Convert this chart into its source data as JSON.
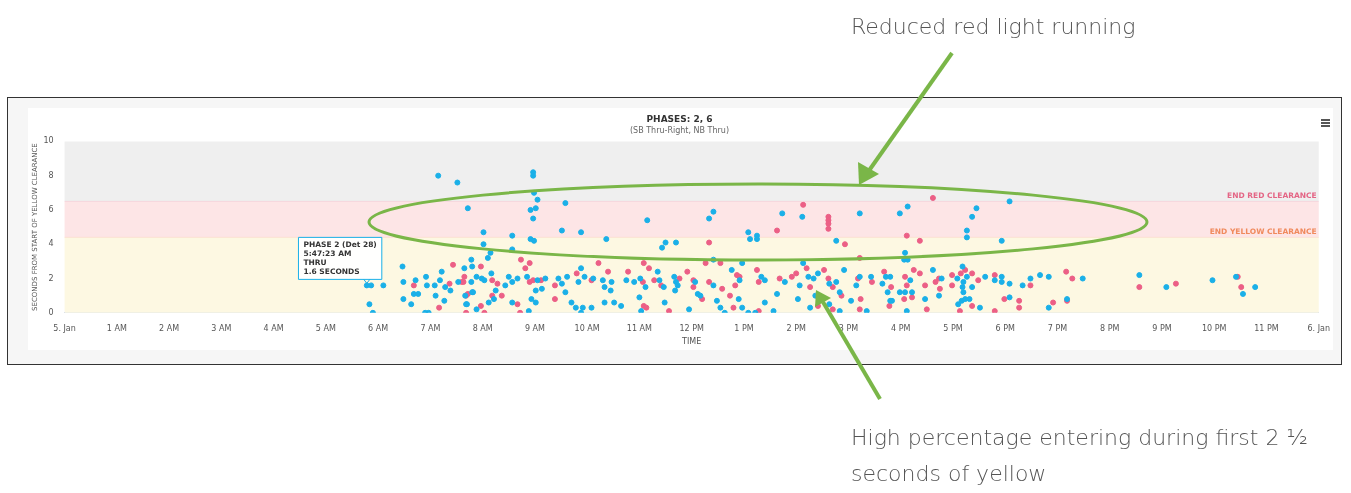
{
  "chart_data": {
    "type": "scatter",
    "title": "PHASES: 2, 6",
    "subtitle": "(SB Thru-Right, NB Thru)",
    "xlabel": "TIME",
    "ylabel": "SECONDS FROM START OF YELLOW CLEARANCE",
    "marker": "circle",
    "xlim": [
      "--01-05T00:00",
      "--01-06T00:00"
    ],
    "xticks": [
      {
        "value": "--01-05T00:00",
        "label": "5. Jan"
      },
      {
        "value": "--01-05T01:00",
        "label": "1 AM"
      },
      {
        "value": "--01-05T02:00",
        "label": "2 AM"
      },
      {
        "value": "--01-05T03:00",
        "label": "3 AM"
      },
      {
        "value": "--01-05T04:00",
        "label": "4 AM"
      },
      {
        "value": "--01-05T05:00",
        "label": "5 AM"
      },
      {
        "value": "--01-05T06:00",
        "label": "6 AM"
      },
      {
        "value": "--01-05T07:00",
        "label": "7 AM"
      },
      {
        "value": "--01-05T08:00",
        "label": "8 AM"
      },
      {
        "value": "--01-05T09:00",
        "label": "9 AM"
      },
      {
        "value": "--01-05T10:00",
        "label": "10 AM"
      },
      {
        "value": "--01-05T11:00",
        "label": "11 AM"
      },
      {
        "value": "--01-05T12:00",
        "label": "12 PM"
      },
      {
        "value": "--01-05T13:00",
        "label": "1 PM"
      },
      {
        "value": "--01-05T14:00",
        "label": "2 PM"
      },
      {
        "value": "--01-05T15:00",
        "label": "3 PM"
      },
      {
        "value": "--01-05T16:00",
        "label": "4 PM"
      },
      {
        "value": "--01-05T17:00",
        "label": "5 PM"
      },
      {
        "value": "--01-05T18:00",
        "label": "6 PM"
      },
      {
        "value": "--01-05T19:00",
        "label": "7 PM"
      },
      {
        "value": "--01-05T20:00",
        "label": "8 PM"
      },
      {
        "value": "--01-05T21:00",
        "label": "9 PM"
      },
      {
        "value": "--01-05T22:00",
        "label": "10 PM"
      },
      {
        "value": "--01-05T23:00",
        "label": "11 PM"
      },
      {
        "value": "--01-06T00:00",
        "label": "6. Jan"
      }
    ],
    "ylim": [
      0,
      10
    ],
    "yticks": [
      0,
      2,
      4,
      6,
      8,
      10
    ],
    "bands": [
      {
        "axis": "y",
        "from": 6.5,
        "to": 10,
        "color": "#efefef"
      },
      {
        "axis": "y",
        "from": 4.4,
        "to": 6.5,
        "color": "#fde5e6"
      },
      {
        "axis": "y",
        "from": 0,
        "to": 4.4,
        "color": "#fdf8e2"
      }
    ],
    "ref_lines": [
      {
        "axis": "y",
        "value": 6.5,
        "label": "END RED CLEARANCE",
        "color": "#e46585"
      },
      {
        "axis": "y",
        "value": 4.4,
        "label": "END YELLOW CLEARANCE",
        "color": "#f08a5d"
      }
    ],
    "series": [
      {
        "color": "#1ab0e8",
        "x": [
          "--01-05T07:09",
          "--01-05T07:31",
          "--01-05T07:43",
          "--01-05T05:47",
          "--01-05T05:52",
          "--01-05T06:06",
          "--01-05T05:50",
          "--01-05T05:54",
          "--01-05T06:28",
          "--01-05T06:29",
          "--01-05T06:29",
          "--01-05T06:38",
          "--01-05T06:43",
          "--01-05T06:41",
          "--01-05T06:46",
          "--01-05T06:55",
          "--01-05T06:56",
          "--01-05T06:54",
          "--01-05T06:58",
          "--01-05T07:05",
          "--01-05T07:06",
          "--01-05T07:13",
          "--01-05T07:11",
          "--01-05T07:16",
          "--01-05T07:17",
          "--01-05T07:23",
          "--01-05T07:32",
          "--01-05T07:39",
          "--01-05T07:40",
          "--01-05T07:42",
          "--01-05T07:47",
          "--01-05T07:47",
          "--01-05T07:49",
          "--01-05T07:53",
          "--01-05T07:53",
          "--01-05T08:58",
          "--01-05T08:58",
          "--01-05T08:59",
          "--01-05T09:03",
          "--01-05T09:01",
          "--01-05T08:55",
          "--01-05T08:58",
          "--01-05T09:35",
          "--01-05T08:01",
          "--01-05T08:34",
          "--01-05T09:31",
          "--01-05T09:53",
          "--01-05T08:55",
          "--01-05T08:59",
          "--01-05T10:22",
          "--01-05T08:01",
          "--01-05T08:34",
          "--01-05T11:09",
          "--01-05T11:30",
          "--01-05T11:42",
          "--01-05T11:26",
          "--01-05T12:20",
          "--01-05T12:25",
          "--01-05T13:05",
          "--01-05T13:07",
          "--01-05T13:15",
          "--01-05T13:15",
          "--01-05T13:44",
          "--01-05T14:07",
          "--01-05T14:46",
          "--01-05T15:13",
          "--01-05T07:48",
          "--01-05T07:59",
          "--01-05T08:02",
          "--01-05T08:06",
          "--01-05T08:09",
          "--01-05T08:10",
          "--01-05T08:15",
          "--01-05T08:13",
          "--01-05T08:07",
          "--01-05T07:41",
          "--01-05T07:48",
          "--01-05T08:30",
          "--01-05T08:34",
          "--01-05T08:40",
          "--01-05T08:51",
          "--01-05T09:03",
          "--01-05T09:12",
          "--01-05T09:01",
          "--01-05T09:08",
          "--01-05T08:56",
          "--01-05T09:01",
          "--01-05T08:53",
          "--01-05T08:34",
          "--01-05T08:26",
          "--01-05T09:27",
          "--01-05T09:31",
          "--01-05T09:35",
          "--01-05T09:37",
          "--01-05T09:53",
          "--01-05T09:57",
          "--01-05T09:50",
          "--01-05T10:07",
          "--01-05T10:18",
          "--01-05T10:28",
          "--01-05T10:27",
          "--01-05T10:20",
          "--01-05T09:42",
          "--01-05T09:47",
          "--01-05T09:55",
          "--01-05T10:05",
          "--01-05T09:53",
          "--01-05T10:20",
          "--01-05T10:31",
          "--01-05T10:39",
          "--01-05T10:45",
          "--01-05T10:54",
          "--01-05T11:01",
          "--01-05T11:07",
          "--01-05T11:00",
          "--01-05T11:02",
          "--01-05T11:21",
          "--01-05T11:23",
          "--01-05T11:28",
          "--01-05T11:29",
          "--01-05T11:40",
          "--01-05T11:42",
          "--01-05T11:44",
          "--01-05T11:41",
          "--01-05T12:04",
          "--01-05T12:07",
          "--01-05T12:10",
          "--01-05T11:57",
          "--01-05T12:25",
          "--01-05T12:25",
          "--01-05T12:29",
          "--01-05T12:33",
          "--01-05T12:38",
          "--01-05T12:46",
          "--01-05T12:55",
          "--01-05T12:58",
          "--01-05T12:54",
          "--01-05T12:58",
          "--01-05T13:05",
          "--01-05T13:20",
          "--01-05T13:24",
          "--01-05T13:24",
          "--01-05T13:13",
          "--01-05T13:34",
          "--01-05T13:38",
          "--01-05T13:47",
          "--01-05T14:04",
          "--01-05T14:08",
          "--01-05T14:14",
          "--01-05T14:20",
          "--01-05T14:25",
          "--01-05T14:22",
          "--01-05T14:02",
          "--01-05T14:16",
          "--01-05T14:38",
          "--01-05T14:46",
          "--01-05T14:50",
          "--01-05T14:38",
          "--01-05T14:50",
          "--01-05T14:55",
          "--01-05T15:03",
          "--01-05T15:13",
          "--01-05T15:09",
          "--01-05T15:26",
          "--01-05T15:39",
          "--01-05T15:43",
          "--01-05T15:21",
          "--01-05T15:50",
          "--01-05T16:08",
          "--01-05T15:59",
          "--01-05T17:27",
          "--01-05T17:22",
          "--01-05T17:16",
          "--01-05T17:16",
          "--01-05T18:05",
          "--01-05T17:56",
          "--01-05T16:05",
          "--01-05T16:04",
          "--01-05T16:08",
          "--01-05T15:48",
          "--01-05T15:45",
          "--01-05T15:48",
          "--01-05T15:59",
          "--01-05T16:11",
          "--01-05T16:05",
          "--01-05T16:13",
          "--01-05T16:07",
          "--01-05T16:28",
          "--01-05T16:37",
          "--01-05T16:47",
          "--01-05T16:44",
          "--01-05T17:05",
          "--01-05T17:11",
          "--01-05T17:12",
          "--01-05T17:16",
          "--01-05T17:11",
          "--01-05T17:12",
          "--01-05T17:22",
          "--01-05T17:06",
          "--01-05T17:10",
          "--01-05T17:14",
          "--01-05T17:19",
          "--01-05T17:31",
          "--01-05T17:37",
          "--01-05T17:48",
          "--01-05T17:56",
          "--01-05T17:56",
          "--01-05T18:05",
          "--01-05T18:05",
          "--01-05T18:20",
          "--01-05T18:29",
          "--01-05T18:40",
          "--01-05T18:50",
          "--01-05T18:50",
          "--01-05T19:11",
          "--01-05T19:29",
          "--01-05T20:34",
          "--01-05T21:05",
          "--01-05T21:58",
          "--01-05T22:25",
          "--01-05T22:33",
          "--01-05T22:47"
        ],
        "values": [
          8.0,
          7.6,
          6.1,
          1.6,
          1.6,
          1.6,
          0.5,
          0,
          2.7,
          1.8,
          0.8,
          0.5,
          1.9,
          1.1,
          1.1,
          2.1,
          1.6,
          0,
          0,
          1.6,
          1.0,
          2.4,
          1.9,
          0.7,
          1.5,
          1.3,
          1.8,
          2.6,
          1.0,
          0.5,
          3.1,
          1.8,
          1.2,
          2.1,
          0.2,
          8.2,
          8.0,
          7.0,
          6.6,
          6.1,
          6.0,
          5.5,
          6.4,
          4.7,
          4.5,
          4.8,
          4.7,
          4.3,
          4.2,
          4.3,
          4.0,
          3.7,
          5.4,
          4.1,
          4.1,
          3.8,
          5.5,
          5.9,
          4.7,
          4.3,
          4.5,
          4.3,
          5.8,
          5.6,
          4.2,
          5.8,
          2.7,
          2.0,
          1.9,
          3.2,
          3.5,
          2.3,
          1.3,
          0.8,
          0.6,
          0.5,
          1.2,
          2.1,
          1.8,
          2.0,
          2.1,
          1.9,
          2.0,
          1.3,
          1.4,
          0.8,
          0.6,
          0.1,
          0.6,
          1.6,
          2.0,
          1.7,
          1.2,
          2.1,
          2.6,
          2.1,
          1.8,
          2.0,
          1.9,
          1.8,
          1.3,
          1.5,
          0.6,
          0.3,
          0.3,
          0.3,
          0,
          0.6,
          0.6,
          0.4,
          1.9,
          1.8,
          2.0,
          1.5,
          0.9,
          0.1,
          2.4,
          1.9,
          1.5,
          0.6,
          2.1,
          1.8,
          1.6,
          1.3,
          1.8,
          1.1,
          1.0,
          0.2,
          3.1,
          1.6,
          0.7,
          0.3,
          0,
          2.5,
          1.9,
          2.9,
          0.8,
          0.3,
          0,
          2.1,
          1.9,
          0.6,
          0,
          0.1,
          1.1,
          1.8,
          1.6,
          2.9,
          2.1,
          2.0,
          2.3,
          1.0,
          0.8,
          0.3,
          1.7,
          1.8,
          1.2,
          0.5,
          0.1,
          2.5,
          0.7,
          2.1,
          1.6,
          2.1,
          1.7,
          2.1,
          0.1,
          0.7,
          6.2,
          5.8,
          6.1,
          5.6,
          4.8,
          4.4,
          6.5,
          4.2,
          3.5,
          3.1,
          3.1,
          2.1,
          1.2,
          0.7,
          1.2,
          1.9,
          1.2,
          1.2,
          0.1,
          0.8,
          2.5,
          2.0,
          1.0,
          2.0,
          2.7,
          1.8,
          2.1,
          1.5,
          1.2,
          1.5,
          0.5,
          0.7,
          0.8,
          0.8,
          0.3,
          2.1,
          1.9,
          2.1,
          1.8,
          0.9,
          1.7,
          1.6,
          2.0,
          2.2,
          2.1,
          0.3,
          0.8,
          2.0,
          2.2,
          1.5,
          1.9,
          2.1,
          1.1,
          1.5
        ]
      },
      {
        "color": "#ec5f86",
        "x": [
          "--01-05T06:41",
          "--01-05T07:10",
          "--01-05T07:22",
          "--01-05T07:26",
          "--01-05T07:36",
          "--01-05T07:39",
          "--01-05T07:43",
          "--01-05T07:41",
          "--01-05T12:20",
          "--01-05T13:38",
          "--01-05T14:08",
          "--01-05T14:37",
          "--01-05T14:37",
          "--01-05T14:37",
          "--01-05T14:37",
          "--01-05T14:56",
          "--01-05T15:13",
          "--01-05T16:37",
          "--01-05T16:07",
          "--01-05T16:22",
          "--01-05T07:38",
          "--01-05T07:58",
          "--01-05T08:11",
          "--01-05T08:17",
          "--01-05T08:11",
          "--01-05T07:58",
          "--01-05T08:02",
          "--01-05T07:41",
          "--01-05T08:44",
          "--01-05T08:49",
          "--01-05T08:54",
          "--01-05T08:54",
          "--01-05T08:58",
          "--01-05T09:07",
          "--01-05T08:40",
          "--01-05T08:43",
          "--01-05T08:22",
          "--01-05T09:23",
          "--01-05T09:48",
          "--01-05T10:05",
          "--01-05T10:13",
          "--01-05T10:24",
          "--01-05T09:23",
          "--01-05T10:47",
          "--01-05T11:05",
          "--01-05T11:04",
          "--01-05T11:05",
          "--01-05T11:08",
          "--01-05T11:11",
          "--01-05T11:17",
          "--01-05T11:25",
          "--01-05T11:34",
          "--01-05T11:46",
          "--01-05T11:55",
          "--01-05T12:02",
          "--01-05T12:02",
          "--01-05T12:12",
          "--01-05T12:16",
          "--01-05T12:20",
          "--01-05T12:33",
          "--01-05T12:35",
          "--01-05T12:52",
          "--01-05T12:55",
          "--01-05T12:50",
          "--01-05T12:44",
          "--01-05T12:48",
          "--01-05T13:15",
          "--01-05T13:17",
          "--01-05T13:17",
          "--01-05T13:41",
          "--01-05T13:55",
          "--01-05T14:00",
          "--01-05T14:12",
          "--01-05T14:16",
          "--01-05T14:25",
          "--01-05T14:32",
          "--01-05T14:37",
          "--01-05T14:42",
          "--01-05T14:52",
          "--01-05T14:42",
          "--01-05T15:11",
          "--01-05T15:14",
          "--01-05T15:13",
          "--01-05T15:27",
          "--01-05T15:41",
          "--01-05T15:49",
          "--01-05T15:47",
          "--01-05T16:05",
          "--01-05T16:07",
          "--01-05T16:04",
          "--01-05T16:13",
          "--01-05T16:15",
          "--01-05T16:22",
          "--01-05T16:28",
          "--01-05T16:30",
          "--01-05T16:40",
          "--01-05T16:44",
          "--01-05T16:45",
          "--01-05T16:59",
          "--01-05T16:59",
          "--01-05T17:14",
          "--01-05T17:09",
          "--01-05T17:22",
          "--01-05T17:22",
          "--01-05T17:08",
          "--01-05T17:29",
          "--01-05T17:48",
          "--01-05T17:48",
          "--01-05T17:59",
          "--01-05T18:16",
          "--01-05T18:16",
          "--01-05T18:29",
          "--01-05T18:55",
          "--01-05T19:10",
          "--01-05T19:17",
          "--01-05T19:11",
          "--01-05T20:34",
          "--01-05T21:16",
          "--01-05T22:27",
          "--01-05T22:31"
        ],
        "values": [
          1.6,
          0.3,
          1.7,
          2.8,
          1.8,
          2.1,
          1.1,
          0,
          4.1,
          4.8,
          6.3,
          5.6,
          5.4,
          5.2,
          4.9,
          4.0,
          3.2,
          6.7,
          4.5,
          4.2,
          1.8,
          2.7,
          1.9,
          1.7,
          1.0,
          0.4,
          0,
          1.0,
          3.1,
          2.6,
          2.9,
          1.8,
          1.9,
          1.9,
          0.5,
          0,
          1.0,
          1.6,
          2.3,
          1.9,
          2.9,
          2.4,
          0.8,
          2.4,
          2.9,
          1.8,
          0.4,
          0.3,
          2.6,
          1.9,
          1.6,
          0.1,
          2.0,
          2.4,
          1.9,
          1.5,
          0.8,
          2.9,
          1.8,
          2.9,
          1.4,
          2.2,
          2.1,
          1.6,
          1.0,
          0.3,
          2.5,
          1.8,
          0.1,
          2.0,
          2.1,
          2.3,
          2.6,
          1.5,
          0.4,
          2.5,
          2.0,
          1.5,
          1.0,
          0.2,
          2.0,
          0.8,
          0.2,
          1.8,
          2.4,
          1.5,
          0.4,
          2.1,
          1.6,
          0.8,
          0.9,
          2.5,
          2.3,
          1.6,
          0.2,
          1.8,
          2.0,
          1.4,
          2.2,
          1.6,
          2.5,
          2.3,
          2.3,
          0.4,
          0.1,
          1.9,
          2.2,
          0.1,
          0.8,
          0.7,
          0.3,
          1.6,
          0.6,
          2.4,
          2.0,
          0.7,
          1.5,
          1.7,
          2.1,
          1.5
        ]
      }
    ],
    "annotations": [
      {
        "text": "PHASE 2 (Det 28)\n5:47:23 AM\nTHRU\n1.6 SECONDS",
        "x": "--01-05T05:47",
        "y": 1.6
      },
      "Reduced red light running",
      "High percentage entering during first 2 ½ seconds of yellow"
    ]
  }
}
